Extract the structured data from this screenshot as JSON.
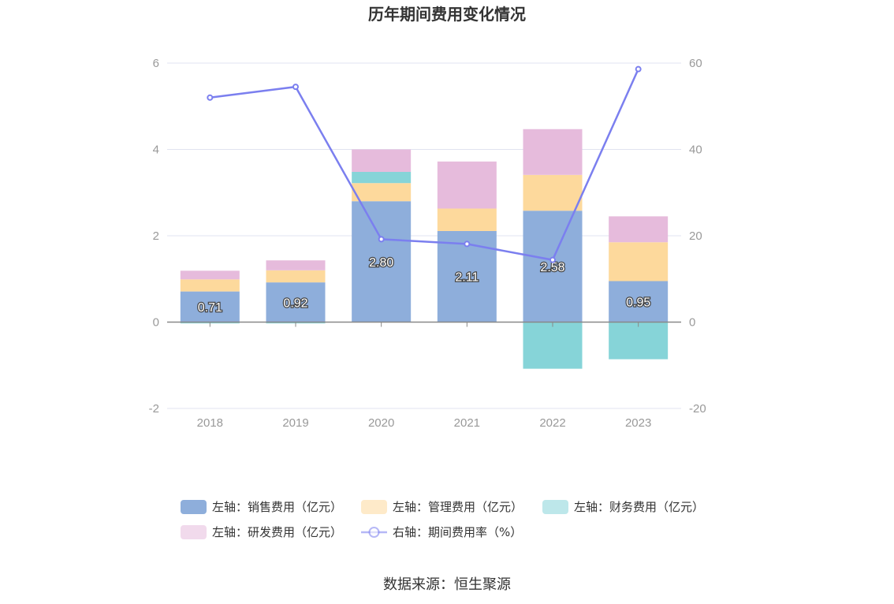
{
  "chart_data": {
    "type": "bar",
    "title": "历年期间费用变化情况",
    "categories": [
      "2018",
      "2019",
      "2020",
      "2021",
      "2022",
      "2023"
    ],
    "left_axis": {
      "ylim": [
        -2,
        6
      ],
      "ticks": [
        "-2",
        "0",
        "2",
        "4",
        "6"
      ]
    },
    "right_axis": {
      "ylim": [
        -20,
        60
      ],
      "ticks": [
        "-20",
        "0",
        "20",
        "40",
        "60"
      ]
    },
    "series": [
      {
        "name": "左轴：销售费用（亿元）",
        "type": "bar",
        "axis": "left",
        "color": "#8eaedb",
        "values": [
          0.71,
          0.92,
          2.8,
          2.11,
          2.58,
          0.95
        ],
        "labels": [
          "0.71",
          "0.92",
          "2.80",
          "2.11",
          "2.58",
          "0.95"
        ]
      },
      {
        "name": "左轴：管理费用（亿元）",
        "type": "bar",
        "axis": "left",
        "color": "#fdd99c",
        "values": [
          0.28,
          0.28,
          0.42,
          0.52,
          0.83,
          0.9
        ]
      },
      {
        "name": "左轴：财务费用（亿元）",
        "type": "bar",
        "axis": "left",
        "color": "#86d4d8",
        "values": [
          -0.03,
          -0.03,
          0.26,
          -0.01,
          -1.08,
          -0.86
        ]
      },
      {
        "name": "左轴：研发费用（亿元）",
        "type": "bar",
        "axis": "left",
        "color": "#e6bbdc",
        "values": [
          0.2,
          0.23,
          0.52,
          1.09,
          1.06,
          0.6
        ]
      },
      {
        "name": "右轴：期间费用率（%）",
        "type": "line",
        "axis": "right",
        "color": "#7b7fef",
        "values": [
          52.0,
          54.5,
          19.2,
          18.1,
          14.4,
          58.6
        ]
      }
    ],
    "legend_position": "bottom",
    "grid": true
  },
  "source": "数据来源：恒生聚源"
}
